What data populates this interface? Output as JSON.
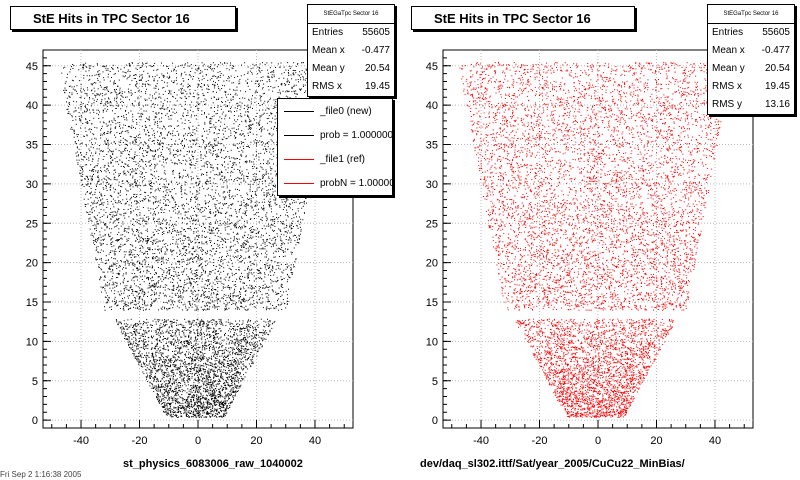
{
  "chart_data": [
    {
      "type": "scatter",
      "title": "StE Hits in TPC Sector 16",
      "xlabel": "st_physics_6083006_raw_1040002",
      "xlim": [
        -53,
        53
      ],
      "ylim": [
        -1,
        47
      ],
      "xticks": [
        "-40",
        "-20",
        "0",
        "20",
        "40"
      ],
      "yticks": [
        "0",
        "5",
        "10",
        "15",
        "20",
        "25",
        "30",
        "35",
        "40",
        "45"
      ],
      "marker_color": "#000000",
      "stats": {
        "header": "StEGaTpc Sector 16",
        "rows": [
          {
            "label": "Entries",
            "value": "55605"
          },
          {
            "label": "Mean x",
            "value": "-0.477"
          },
          {
            "label": "Mean y",
            "value": "20.54"
          },
          {
            "label": "RMS x",
            "value": "19.45"
          }
        ]
      },
      "legend": [
        {
          "label": "_file0 (new)",
          "color": "#000000"
        },
        {
          "label": "prob = 1.000000",
          "color": "#000000"
        },
        {
          "label": "_file1 (ref)",
          "color": "#ff0000"
        },
        {
          "label": "probN = 1.000000",
          "color": "#ff0000"
        }
      ]
    },
    {
      "type": "scatter",
      "title": "StE Hits in TPC Sector 16",
      "xlabel": "dev/daq_sl302.ittf/Sat/year_2005/CuCu22_MinBias/",
      "xlim": [
        -53,
        53
      ],
      "ylim": [
        -1,
        47
      ],
      "xticks": [
        "-40",
        "-20",
        "0",
        "20",
        "40"
      ],
      "yticks": [
        "0",
        "5",
        "10",
        "15",
        "20",
        "25",
        "30",
        "35",
        "40",
        "45"
      ],
      "marker_color": "#ff0000",
      "stats": {
        "header": "StEGaTpc Sector 16",
        "rows": [
          {
            "label": "Entries",
            "value": "55605"
          },
          {
            "label": "Mean x",
            "value": "-0.477"
          },
          {
            "label": "Mean y",
            "value": "20.54"
          },
          {
            "label": "RMS x",
            "value": "19.45"
          },
          {
            "label": "RMS y",
            "value": "13.16"
          }
        ]
      }
    }
  ],
  "footer": "Fri Sep 2 1:16:38 2005"
}
